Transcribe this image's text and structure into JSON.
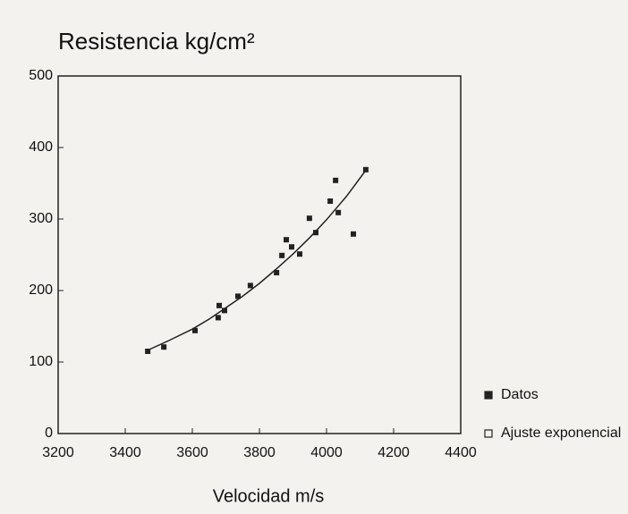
{
  "chart_data": {
    "type": "scatter",
    "title": "Resistencia kg/cm²",
    "x_label": "Velocidad m/s",
    "xlim": [
      3200,
      4400
    ],
    "xticks": [
      3200,
      3400,
      3600,
      3800,
      4000,
      4200,
      4400
    ],
    "ylim": [
      0,
      500
    ],
    "yticks": [
      0,
      100,
      200,
      300,
      400,
      500
    ],
    "legend": "lower right",
    "series": [
      {
        "name": "Datos",
        "style": "points",
        "color": "#222222",
        "x": [
          3467,
          3515,
          3608,
          3677,
          3680,
          3696,
          3736,
          3773,
          3851,
          3867,
          3880,
          3896,
          3920,
          3949,
          3968,
          4011,
          4027,
          4035,
          4080,
          4117
        ],
        "values": [
          115,
          121,
          144,
          162,
          179,
          172,
          192,
          207,
          225,
          249,
          271,
          261,
          251,
          301,
          281,
          325,
          354,
          309,
          279,
          369
        ]
      },
      {
        "name": "Ajuste exponencial",
        "style": "line",
        "color": "#222222",
        "x": [
          3460,
          3530,
          3600,
          3650,
          3700,
          3750,
          3800,
          3850,
          3900,
          3950,
          4000,
          4060,
          4120
        ],
        "values": [
          115,
          130,
          146,
          160,
          176,
          192,
          210,
          230,
          251,
          274,
          299,
          332,
          370
        ]
      }
    ]
  }
}
